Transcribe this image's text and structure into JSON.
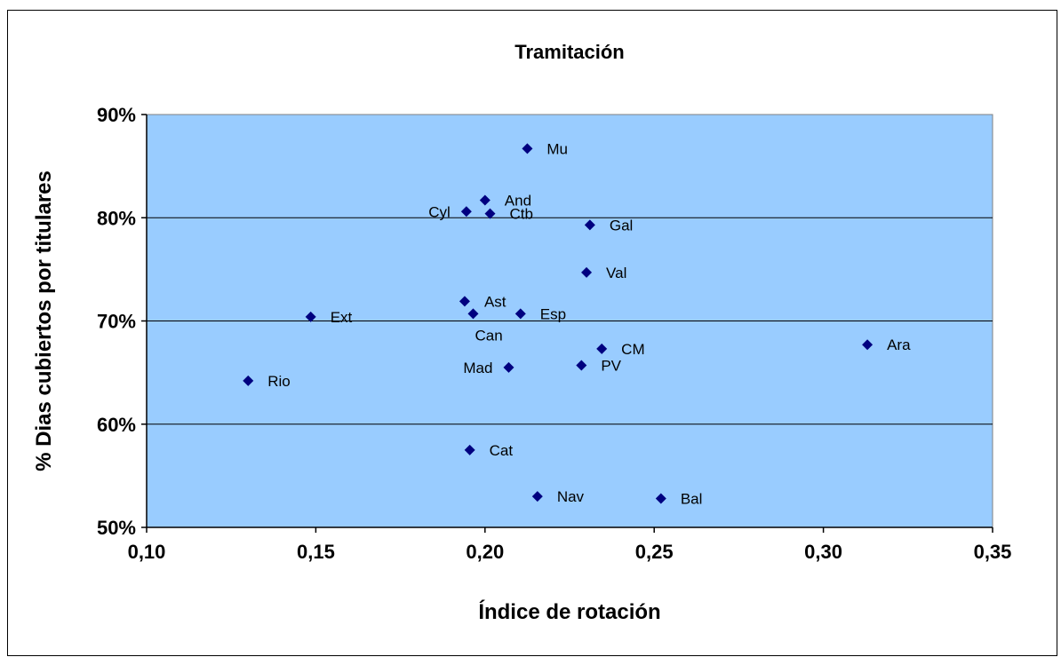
{
  "chart_data": {
    "type": "scatter",
    "title": "Tramitación",
    "xlabel": "Índice de rotación",
    "ylabel": "% Dias cubiertos por titulares",
    "xlim": [
      0.1,
      0.35
    ],
    "ylim": [
      0.5,
      0.9
    ],
    "x_ticks": [
      0.1,
      0.15,
      0.2,
      0.25,
      0.3,
      0.35
    ],
    "x_tick_labels": [
      "0,10",
      "0,15",
      "0,20",
      "0,25",
      "0,30",
      "0,35"
    ],
    "y_ticks": [
      0.5,
      0.6,
      0.7,
      0.8,
      0.9
    ],
    "y_tick_labels": [
      "50%",
      "60%",
      "70%",
      "80%",
      "90%"
    ],
    "grid": "horizontal",
    "legend": "none",
    "colors": {
      "plot_bg": "#99ccff",
      "marker": "#000080",
      "grid": "#000000"
    },
    "points": [
      {
        "label": "Mu",
        "x": 0.2125,
        "y": 0.867,
        "label_pos": "right"
      },
      {
        "label": "And",
        "x": 0.2,
        "y": 0.817,
        "label_pos": "right"
      },
      {
        "label": "Cyl",
        "x": 0.1945,
        "y": 0.806,
        "label_pos": "left"
      },
      {
        "label": "Ctb",
        "x": 0.2015,
        "y": 0.804,
        "label_pos": "right"
      },
      {
        "label": "Gal",
        "x": 0.231,
        "y": 0.793,
        "label_pos": "right"
      },
      {
        "label": "Val",
        "x": 0.23,
        "y": 0.747,
        "label_pos": "right"
      },
      {
        "label": "Ast",
        "x": 0.194,
        "y": 0.719,
        "label_pos": "right"
      },
      {
        "label": "Can",
        "x": 0.1965,
        "y": 0.707,
        "label_pos": "below"
      },
      {
        "label": "Esp",
        "x": 0.2105,
        "y": 0.707,
        "label_pos": "right"
      },
      {
        "label": "Ext",
        "x": 0.1485,
        "y": 0.704,
        "label_pos": "right"
      },
      {
        "label": "Ara",
        "x": 0.313,
        "y": 0.677,
        "label_pos": "right"
      },
      {
        "label": "CM",
        "x": 0.2345,
        "y": 0.673,
        "label_pos": "right"
      },
      {
        "label": "PV",
        "x": 0.2285,
        "y": 0.657,
        "label_pos": "right"
      },
      {
        "label": "Mad",
        "x": 0.207,
        "y": 0.655,
        "label_pos": "left"
      },
      {
        "label": "Rio",
        "x": 0.13,
        "y": 0.642,
        "label_pos": "right"
      },
      {
        "label": "Cat",
        "x": 0.1955,
        "y": 0.575,
        "label_pos": "right"
      },
      {
        "label": "Nav",
        "x": 0.2155,
        "y": 0.53,
        "label_pos": "right"
      },
      {
        "label": "Bal",
        "x": 0.252,
        "y": 0.528,
        "label_pos": "right"
      }
    ]
  }
}
